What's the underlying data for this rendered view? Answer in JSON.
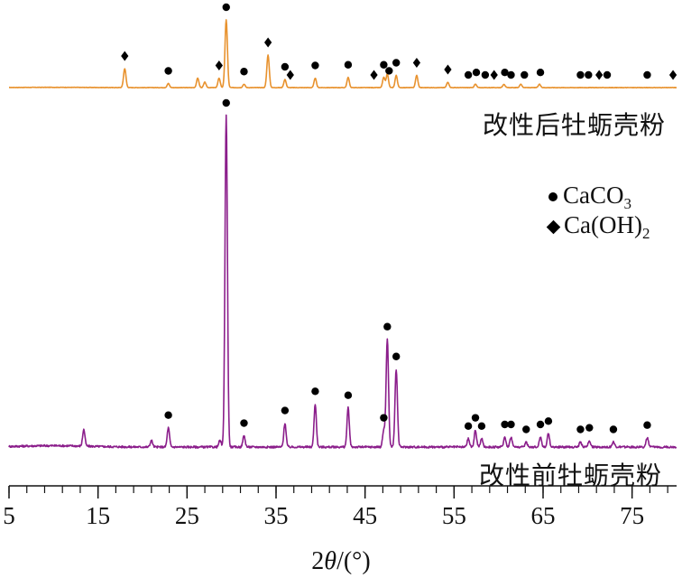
{
  "chart_data": {
    "type": "line",
    "xlabel": {
      "prefix": "2",
      "symbol": "θ",
      "suffix": "/(°)"
    },
    "xlim": [
      5,
      80
    ],
    "xticks": [
      5,
      15,
      25,
      35,
      45,
      55,
      65,
      75
    ],
    "minor_tick_step": 2,
    "y_axis": "none",
    "legend": {
      "placement": "right-middle",
      "items": [
        {
          "marker": "dot",
          "label": "CaCO",
          "sub": "3"
        },
        {
          "marker": "diamond",
          "label": "Ca(OH)",
          "sub": "2"
        }
      ]
    },
    "series": [
      {
        "label": "改性后牡蛎壳粉",
        "color": "#E8922E",
        "panel": "top",
        "baseline": 0,
        "peaks": [
          {
            "x": 18.0,
            "h": 0.28
          },
          {
            "x": 22.9,
            "h": 0.06
          },
          {
            "x": 26.2,
            "h": 0.14
          },
          {
            "x": 27.0,
            "h": 0.08
          },
          {
            "x": 28.6,
            "h": 0.14
          },
          {
            "x": 29.4,
            "h": 1.0
          },
          {
            "x": 31.4,
            "h": 0.05
          },
          {
            "x": 34.1,
            "h": 0.48
          },
          {
            "x": 36.0,
            "h": 0.12
          },
          {
            "x": 39.4,
            "h": 0.14
          },
          {
            "x": 43.1,
            "h": 0.15
          },
          {
            "x": 47.1,
            "h": 0.15
          },
          {
            "x": 47.5,
            "h": 0.2
          },
          {
            "x": 48.5,
            "h": 0.18
          },
          {
            "x": 50.8,
            "h": 0.18
          },
          {
            "x": 54.3,
            "h": 0.08
          },
          {
            "x": 57.4,
            "h": 0.05
          },
          {
            "x": 60.6,
            "h": 0.05
          },
          {
            "x": 62.5,
            "h": 0.05
          },
          {
            "x": 64.6,
            "h": 0.05
          }
        ],
        "markers": [
          {
            "x": 18.0,
            "m": "diamond"
          },
          {
            "x": 22.9,
            "m": "dot"
          },
          {
            "x": 28.6,
            "m": "diamond"
          },
          {
            "x": 29.4,
            "m": "dot"
          },
          {
            "x": 31.4,
            "m": "dot"
          },
          {
            "x": 34.1,
            "m": "diamond"
          },
          {
            "x": 36.0,
            "m": "dot"
          },
          {
            "x": 36.6,
            "m": "diamond"
          },
          {
            "x": 39.4,
            "m": "dot"
          },
          {
            "x": 43.1,
            "m": "dot"
          },
          {
            "x": 46.0,
            "m": "diamond"
          },
          {
            "x": 47.1,
            "m": "dot"
          },
          {
            "x": 47.7,
            "m": "dot"
          },
          {
            "x": 48.5,
            "m": "dot"
          },
          {
            "x": 50.8,
            "m": "diamond"
          },
          {
            "x": 54.3,
            "m": "diamond"
          },
          {
            "x": 56.6,
            "m": "dot"
          },
          {
            "x": 57.5,
            "m": "dot"
          },
          {
            "x": 58.5,
            "m": "dot"
          },
          {
            "x": 59.5,
            "m": "diamond"
          },
          {
            "x": 60.7,
            "m": "dot"
          },
          {
            "x": 61.4,
            "m": "dot"
          },
          {
            "x": 62.9,
            "m": "dot"
          },
          {
            "x": 64.7,
            "m": "dot"
          },
          {
            "x": 69.2,
            "m": "dot"
          },
          {
            "x": 70.1,
            "m": "dot"
          },
          {
            "x": 71.3,
            "m": "diamond"
          },
          {
            "x": 72.2,
            "m": "dot"
          },
          {
            "x": 76.7,
            "m": "dot"
          },
          {
            "x": 79.6,
            "m": "diamond"
          }
        ]
      },
      {
        "label": "改性前牡蛎壳粉",
        "color": "#8B1E8B",
        "panel": "bottom",
        "baseline": 0,
        "peaks": [
          {
            "x": 13.4,
            "h": 0.05
          },
          {
            "x": 21.0,
            "h": 0.02
          },
          {
            "x": 22.9,
            "h": 0.058
          },
          {
            "x": 28.7,
            "h": 0.02
          },
          {
            "x": 29.4,
            "h": 1.0
          },
          {
            "x": 31.4,
            "h": 0.034
          },
          {
            "x": 36.0,
            "h": 0.072
          },
          {
            "x": 39.4,
            "h": 0.13
          },
          {
            "x": 43.1,
            "h": 0.118
          },
          {
            "x": 47.1,
            "h": 0.05
          },
          {
            "x": 47.5,
            "h": 0.325
          },
          {
            "x": 48.5,
            "h": 0.235
          },
          {
            "x": 56.6,
            "h": 0.025
          },
          {
            "x": 57.4,
            "h": 0.05
          },
          {
            "x": 58.1,
            "h": 0.025
          },
          {
            "x": 60.7,
            "h": 0.03
          },
          {
            "x": 61.4,
            "h": 0.03
          },
          {
            "x": 63.1,
            "h": 0.015
          },
          {
            "x": 64.7,
            "h": 0.03
          },
          {
            "x": 65.6,
            "h": 0.04
          },
          {
            "x": 69.2,
            "h": 0.015
          },
          {
            "x": 70.2,
            "h": 0.02
          },
          {
            "x": 72.9,
            "h": 0.015
          },
          {
            "x": 76.7,
            "h": 0.028
          }
        ],
        "markers": [
          {
            "x": 22.9,
            "m": "dot"
          },
          {
            "x": 29.4,
            "m": "dot"
          },
          {
            "x": 31.4,
            "m": "dot"
          },
          {
            "x": 36.0,
            "m": "dot"
          },
          {
            "x": 39.4,
            "m": "dot"
          },
          {
            "x": 43.1,
            "m": "dot"
          },
          {
            "x": 47.1,
            "m": "dot"
          },
          {
            "x": 47.5,
            "m": "dot"
          },
          {
            "x": 48.5,
            "m": "dot"
          },
          {
            "x": 56.6,
            "m": "dot"
          },
          {
            "x": 57.4,
            "m": "dot"
          },
          {
            "x": 58.1,
            "m": "dot"
          },
          {
            "x": 60.7,
            "m": "dot"
          },
          {
            "x": 61.4,
            "m": "dot"
          },
          {
            "x": 63.1,
            "m": "dot"
          },
          {
            "x": 64.7,
            "m": "dot"
          },
          {
            "x": 65.6,
            "m": "dot"
          },
          {
            "x": 69.2,
            "m": "dot"
          },
          {
            "x": 70.2,
            "m": "dot"
          },
          {
            "x": 72.9,
            "m": "dot"
          },
          {
            "x": 76.7,
            "m": "dot"
          }
        ]
      }
    ]
  }
}
